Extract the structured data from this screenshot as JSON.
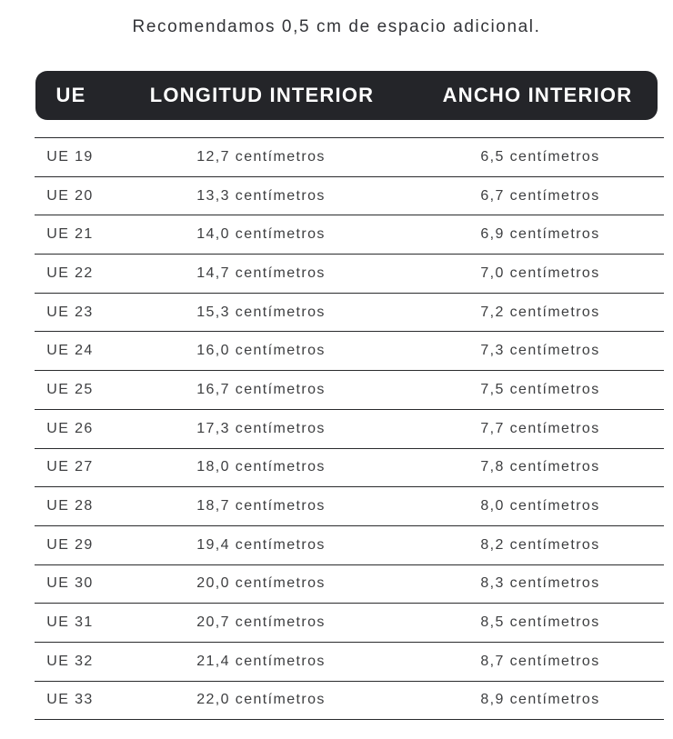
{
  "note": "Recomendamos 0,5 cm de espacio adicional.",
  "table": {
    "columns": [
      "UE",
      "LONGITUD INTERIOR",
      "ANCHO INTERIOR"
    ],
    "rows": [
      {
        "size": "UE 19",
        "length": "12,7 centímetros",
        "width": "6,5 centímetros"
      },
      {
        "size": "UE 20",
        "length": "13,3 centímetros",
        "width": "6,7 centímetros"
      },
      {
        "size": "UE 21",
        "length": "14,0 centímetros",
        "width": "6,9 centímetros"
      },
      {
        "size": "UE 22",
        "length": "14,7 centímetros",
        "width": "7,0 centímetros"
      },
      {
        "size": "UE 23",
        "length": "15,3 centímetros",
        "width": "7,2 centímetros"
      },
      {
        "size": "UE 24",
        "length": "16,0 centímetros",
        "width": "7,3 centímetros"
      },
      {
        "size": "UE 25",
        "length": "16,7 centímetros",
        "width": "7,5 centímetros"
      },
      {
        "size": "UE 26",
        "length": "17,3 centímetros",
        "width": "7,7 centímetros"
      },
      {
        "size": "UE 27",
        "length": "18,0 centímetros",
        "width": "7,8 centímetros"
      },
      {
        "size": "UE 28",
        "length": "18,7 centímetros",
        "width": "8,0 centímetros"
      },
      {
        "size": "UE 29",
        "length": "19,4 centímetros",
        "width": "8,2 centímetros"
      },
      {
        "size": "UE 30",
        "length": "20,0 centímetros",
        "width": "8,3 centímetros"
      },
      {
        "size": "UE 31",
        "length": "20,7 centímetros",
        "width": "8,5 centímetros"
      },
      {
        "size": "UE 32",
        "length": "21,4 centímetros",
        "width": "8,7 centímetros"
      },
      {
        "size": "UE 33",
        "length": "22,0 centímetros",
        "width": "8,9 centímetros"
      }
    ]
  },
  "colors": {
    "header_bg": "#242529",
    "header_text": "#ffffff",
    "body_text": "#3d3e40",
    "divider": "#2a2b2d",
    "page_bg": "#ffffff"
  }
}
